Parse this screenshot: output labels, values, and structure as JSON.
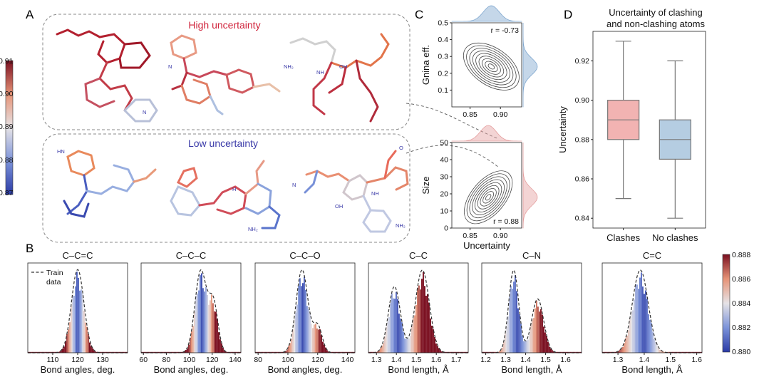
{
  "panel_letters": [
    "A",
    "B",
    "C",
    "D"
  ],
  "panel_a": {
    "high_label": "High uncertainty",
    "low_label": "Low uncertainty",
    "high_color": "#d0233b",
    "low_color": "#3a3aa8",
    "colorbar_ticks": [
      "0.91",
      "0.90",
      "0.89",
      "0.88",
      "0.87"
    ],
    "atom_labels": {
      "nh2": "NH₂",
      "hn": "HN",
      "nh": "NH",
      "h": "H",
      "oh": "OH",
      "n": "N",
      "o": "O"
    }
  },
  "chart_data": [
    {
      "id": "C-top",
      "type": "scatter",
      "plot_kind": "kde-contour",
      "title": "",
      "xlabel": "",
      "ylabel": "Gnina eff.",
      "xlim": [
        0.82,
        0.935
      ],
      "ylim": [
        0.0,
        0.5
      ],
      "xticks": [
        "0.85",
        "0.90"
      ],
      "yticks": [
        "0.1",
        "0.2",
        "0.3",
        "0.4",
        "0.5"
      ],
      "annotation": "r = -0.73",
      "r": -0.73,
      "density_center": [
        0.885,
        0.24
      ],
      "marginal_color": "#7fa7cf"
    },
    {
      "id": "C-bottom",
      "type": "scatter",
      "plot_kind": "kde-contour",
      "title": "",
      "xlabel": "Uncertainty",
      "ylabel": "Size",
      "xlim": [
        0.82,
        0.935
      ],
      "ylim": [
        0,
        50
      ],
      "xticks": [
        "0.85",
        "0.90"
      ],
      "yticks": [
        "0",
        "10",
        "20",
        "30",
        "40",
        "50"
      ],
      "annotation": "r = 0.88",
      "r": 0.88,
      "density_center": [
        0.88,
        18
      ],
      "marginal_color": "#e59f9f"
    },
    {
      "id": "D",
      "type": "box",
      "title": "Uncertainty of clashing and non-clashing atoms",
      "title_lines": [
        "Uncertainty of clashing",
        "and non-clashing atoms"
      ],
      "ylabel": "Uncertainty",
      "categories": [
        "Clashes",
        "No clashes"
      ],
      "ylim": [
        0.835,
        0.935
      ],
      "yticks": [
        "0.84",
        "0.86",
        "0.88",
        "0.90",
        "0.92"
      ],
      "series": [
        {
          "name": "Clashes",
          "whisker_low": 0.85,
          "q1": 0.88,
          "median": 0.89,
          "q3": 0.9,
          "whisker_high": 0.93,
          "color": "#f2b3b2"
        },
        {
          "name": "No clashes",
          "whisker_low": 0.84,
          "q1": 0.87,
          "median": 0.88,
          "q3": 0.89,
          "whisker_high": 0.92,
          "color": "#b5cde2"
        }
      ]
    },
    {
      "id": "B-1",
      "type": "bar",
      "title": "C–C=C",
      "xlabel": "Bond angles, deg.",
      "xlim": [
        100,
        140
      ],
      "xticks": [
        "110",
        "120",
        "130"
      ],
      "center": 120,
      "width": 1.6,
      "train_curve": [
        {
          "center": 120,
          "width": 2.5,
          "amp": 1.0
        }
      ],
      "legend": [
        "Train",
        "data"
      ]
    },
    {
      "id": "B-2",
      "type": "bar",
      "title": "C–C–C",
      "xlabel": "Bond angles, deg.",
      "xlim": [
        58,
        145
      ],
      "xticks": [
        "60",
        "80",
        "100",
        "120",
        "140"
      ],
      "center": 111,
      "width": 4,
      "train_curve": [
        {
          "center": 110,
          "width": 5,
          "amp": 0.92
        },
        {
          "center": 121,
          "width": 4,
          "amp": 0.55
        }
      ]
    },
    {
      "id": "B-3",
      "type": "bar",
      "title": "C–C–O",
      "xlabel": "Bond angles, deg.",
      "xlim": [
        78,
        145
      ],
      "xticks": [
        "80",
        "100",
        "120",
        "140"
      ],
      "center": 110,
      "width": 4,
      "train_curve": [
        {
          "center": 109.5,
          "width": 4,
          "amp": 1.0
        },
        {
          "center": 120,
          "width": 3,
          "amp": 0.32
        }
      ]
    },
    {
      "id": "B-4",
      "type": "bar",
      "title": "C–C",
      "xlabel": "Bond length, Å",
      "xlim": [
        1.26,
        1.76
      ],
      "xticks": [
        "1.3",
        "1.4",
        "1.5",
        "1.6",
        "1.7"
      ],
      "center": 1.41,
      "width": 0.04,
      "train_curve": [
        {
          "center": 1.39,
          "width": 0.03,
          "amp": 0.6
        },
        {
          "center": 1.53,
          "width": 0.035,
          "amp": 0.75
        }
      ]
    },
    {
      "id": "B-5",
      "type": "bar",
      "title": "C–N",
      "xlabel": "Bond length, Å",
      "xlim": [
        1.18,
        1.68
      ],
      "xticks": [
        "1.2",
        "1.3",
        "1.4",
        "1.5",
        "1.6"
      ],
      "center": 1.36,
      "width": 0.04,
      "train_curve": [
        {
          "center": 1.34,
          "width": 0.025,
          "amp": 0.92
        },
        {
          "center": 1.46,
          "width": 0.03,
          "amp": 0.6
        }
      ]
    },
    {
      "id": "B-6",
      "type": "bar",
      "title": "C=C",
      "xlabel": "Bond length, Å",
      "xlim": [
        1.24,
        1.62
      ],
      "xticks": [
        "1.3",
        "1.4",
        "1.5",
        "1.6"
      ],
      "center": 1.4,
      "width": 0.035,
      "train_curve": [
        {
          "center": 1.385,
          "width": 0.03,
          "amp": 0.9
        }
      ]
    }
  ],
  "panel_b_colorbar": {
    "ticks": [
      "0.888",
      "0.886",
      "0.884",
      "0.882",
      "0.880"
    ]
  }
}
